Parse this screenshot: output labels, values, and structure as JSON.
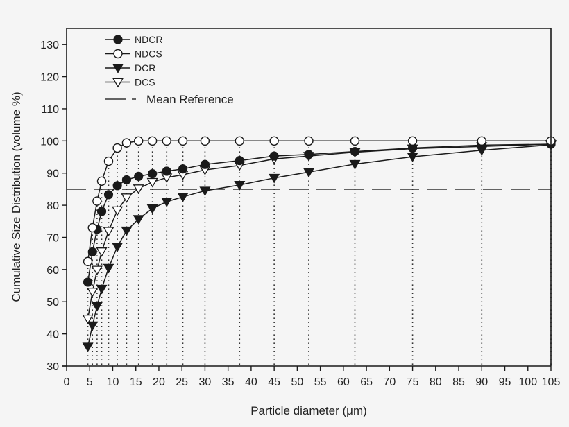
{
  "chart_data": {
    "type": "line",
    "title": "",
    "xlabel": "Particle diameter (μm)",
    "ylabel": "Cumulative Size Distribution (volume %)",
    "xlim": [
      0,
      105
    ],
    "ylim": [
      30,
      135
    ],
    "xticks": [
      0,
      5,
      10,
      15,
      20,
      25,
      30,
      35,
      40,
      45,
      50,
      55,
      60,
      65,
      70,
      75,
      80,
      85,
      90,
      95,
      100,
      105
    ],
    "yticks": [
      30,
      40,
      50,
      60,
      70,
      80,
      90,
      100,
      110,
      120,
      130
    ],
    "grid": false,
    "legend_position": "upper left",
    "x": [
      4.6,
      5.6,
      6.6,
      7.6,
      9.1,
      11,
      13,
      15.6,
      18.6,
      21.7,
      25.2,
      30,
      37.5,
      45,
      52.5,
      62.5,
      75,
      90,
      105
    ],
    "series": [
      {
        "name": "NDCR",
        "marker": "filled-circle",
        "values": [
          56.1,
          65.5,
          72.5,
          78.1,
          83.3,
          86.1,
          87.9,
          89.0,
          89.8,
          90.6,
          91.3,
          92.7,
          93.9,
          95.3,
          95.8,
          96.7,
          97.8,
          98.7,
          99.0
        ]
      },
      {
        "name": "NDCS",
        "marker": "open-circle",
        "values": [
          62.5,
          73.0,
          81.3,
          87.5,
          93.7,
          97.8,
          99.4,
          100.0,
          100.0,
          100.0,
          100.0,
          100.0,
          100.0,
          100.0,
          100.0,
          100.0,
          100.0,
          100.0,
          100.0
        ]
      },
      {
        "name": "DCR",
        "marker": "filled-triangle-down",
        "values": [
          36.0,
          42.6,
          48.6,
          54.0,
          60.5,
          67.1,
          72.1,
          75.7,
          79.0,
          81.1,
          82.6,
          84.5,
          86.3,
          88.5,
          90.3,
          92.8,
          95.1,
          97.1,
          98.8
        ]
      },
      {
        "name": "DCS",
        "marker": "open-triangle-down",
        "values": [
          44.7,
          53.1,
          59.9,
          65.6,
          72.0,
          78.4,
          82.4,
          85.2,
          87.2,
          88.6,
          89.5,
          91.0,
          92.4,
          94.4,
          95.3,
          96.5,
          97.6,
          98.3,
          99.0
        ]
      }
    ],
    "reference_lines": [
      {
        "name": "Mean Reference",
        "orientation": "horizontal",
        "y": 85,
        "style": "dashed"
      }
    ],
    "vertical_guides": {
      "style": "dotted",
      "at": "each x value, from x-axis to NDCS curve"
    }
  },
  "legend": {
    "items": [
      {
        "label": "NDCR",
        "marker": "filled-circle"
      },
      {
        "label": "NDCS",
        "marker": "open-circle"
      },
      {
        "label": "DCR",
        "marker": "filled-triangle-down"
      },
      {
        "label": "DCS",
        "marker": "open-triangle-down"
      },
      {
        "label": "Mean Reference",
        "marker": "dash-line"
      }
    ]
  },
  "colors": {
    "background": "#f5f5f5",
    "ink": "#1a1a1a",
    "open_marker_fill": "#ffffff"
  }
}
